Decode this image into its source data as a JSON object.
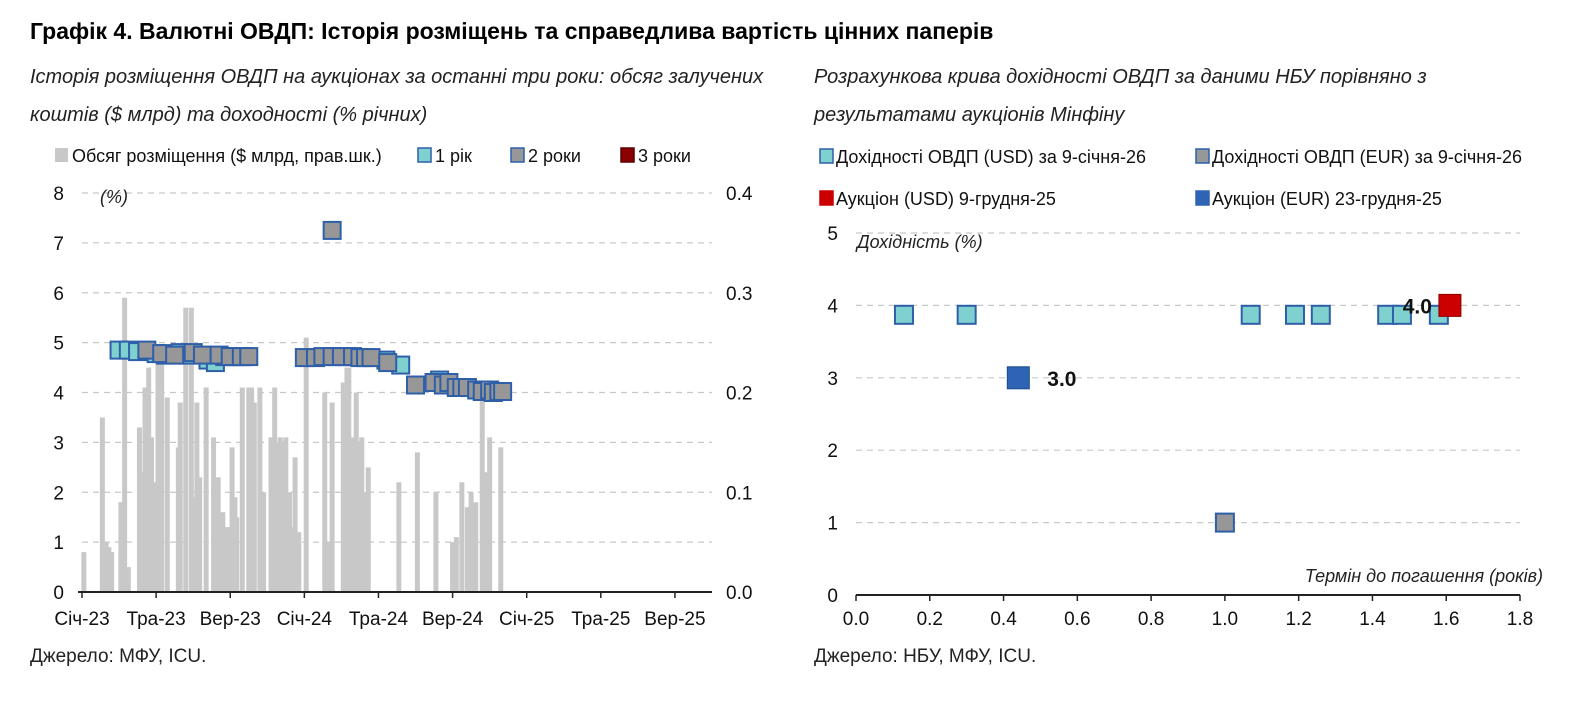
{
  "title": "Графік 4. Валютні ОВДП: Історія розміщень та справедлива вартість цінних паперів",
  "left": {
    "subtitle_line1": "Історія розміщення ОВДП на аукціонах за останні три роки: обсяг залучених",
    "subtitle_line2": "коштів ($ млрд) та доходності (% річних)",
    "source": "Джерело: МФУ, ICU."
  },
  "right": {
    "subtitle_line1": "Розрахункова крива дохідності ОВДП за даними НБУ порівняно з",
    "subtitle_line2": "результатами аукціонів Мінфіну",
    "source": "Джерело: НБУ, МФУ, ICU."
  },
  "colors": {
    "bar": "#c8c8c8",
    "teal": "#7fd1cf",
    "grey_marker": "#979797",
    "dark_red": "#8b0000",
    "red": "#cc0000",
    "blue": "#2e64b3",
    "marker_edge": "#2e5fa8",
    "grid": "#c8c8c8"
  },
  "chart_data": [
    {
      "type": "bar",
      "title": "",
      "ylabel_left": "(%)",
      "ylim_left": [
        0,
        8
      ],
      "yticks_left": [
        "0",
        "1",
        "2",
        "3",
        "4",
        "5",
        "6",
        "7",
        "8"
      ],
      "ylim_right": [
        0,
        0.4
      ],
      "yticks_right": [
        "0.0",
        "0.1",
        "0.2",
        "0.3",
        "0.4"
      ],
      "grid": true,
      "legend_position": "top",
      "x_tick_labels": [
        "Січ-23",
        "Тра-23",
        "Вер-23",
        "Січ-24",
        "Тра-24",
        "Вер-24",
        "Січ-25",
        "Тра-25",
        "Вер-25"
      ],
      "legend": [
        "Обсяг розміщення ($ млрд, прав.шк.)",
        "1 рік",
        "2 роки",
        "3 роки"
      ],
      "series": [
        {
          "name": "Обсяг розміщення ($ млрд, прав.шк.)",
          "axis": "right",
          "x": [
            0.1,
            1.1,
            1.3,
            1.45,
            1.6,
            2.1,
            2.3,
            2.5,
            3.1,
            3.25,
            3.4,
            3.6,
            3.75,
            3.9,
            4.1,
            4.2,
            4.3,
            4.6,
            5.2,
            5.3,
            5.6,
            5.9,
            6.05,
            6.2,
            6.35,
            6.7,
            7.1,
            7.35,
            7.6,
            7.85,
            8.1,
            8.25,
            8.35,
            8.65,
            9.0,
            9.15,
            9.3,
            9.6,
            9.8,
            10.2,
            10.4,
            10.55,
            10.7,
            10.85,
            11.0,
            11.2,
            11.35,
            11.5,
            11.7,
            12.1,
            13.1,
            13.3,
            13.5,
            14.1,
            14.3,
            14.4,
            14.6,
            14.8,
            14.95,
            15.1,
            15.3,
            15.45,
            17.1,
            18.1,
            19.1,
            20.0,
            20.2,
            20.5,
            20.8,
            21.0,
            21.25,
            21.6,
            21.85,
            22.0,
            22.6
          ],
          "values": [
            0.04,
            0.175,
            0.05,
            0.045,
            0.04,
            0.09,
            0.295,
            0.025,
            0.165,
            0.12,
            0.205,
            0.225,
            0.155,
            0.11,
            0.24,
            0.075,
            0.23,
            0.195,
            0.145,
            0.19,
            0.285,
            0.285,
            0.095,
            0.19,
            0.115,
            0.205,
            0.155,
            0.115,
            0.08,
            0.065,
            0.145,
            0.095,
            0.075,
            0.205,
            0.205,
            0.205,
            0.19,
            0.205,
            0.1,
            0.155,
            0.205,
            0.15,
            0.155,
            0.15,
            0.155,
            0.1,
            0.065,
            0.135,
            0.06,
            0.255,
            0.2,
            0.05,
            0.19,
            0.21,
            0.225,
            0.225,
            0.155,
            0.2,
            0.15,
            0.155,
            0.1,
            0.125,
            0.11,
            0.14,
            0.1,
            0.05,
            0.055,
            0.11,
            0.085,
            0.1,
            0.09,
            0.2,
            0.12,
            0.155,
            0.145
          ]
        },
        {
          "name": "1 рік",
          "axis": "left",
          "x": [
            2.0,
            2.5,
            3.0,
            4.0,
            4.5,
            5.3,
            5.7,
            6.8,
            7.2,
            7.7,
            8.2,
            8.7,
            14.3,
            16.4,
            17.2,
            19.3
          ],
          "values": [
            4.85,
            4.85,
            4.82,
            4.78,
            4.75,
            4.8,
            4.75,
            4.65,
            4.6,
            4.72,
            4.72,
            4.72,
            4.72,
            4.65,
            4.55,
            4.25
          ]
        },
        {
          "name": "2 роки",
          "axis": "left",
          "x": [
            3.5,
            4.3,
            5.0,
            6.0,
            6.5,
            7.4,
            8.0,
            8.6,
            9.0,
            12.0,
            12.6,
            13.0,
            13.5,
            14.0,
            14.6,
            15.0,
            15.3,
            15.6,
            16.5,
            18.0,
            19.0,
            19.5,
            19.8,
            20.2,
            20.5,
            20.8,
            21.3,
            21.6,
            22.0,
            22.2,
            22.5,
            22.7
          ],
          "values": [
            4.85,
            4.78,
            4.75,
            4.8,
            4.75,
            4.75,
            4.72,
            4.72,
            4.72,
            4.7,
            4.7,
            4.72,
            4.72,
            4.72,
            4.72,
            4.7,
            4.7,
            4.7,
            4.6,
            4.15,
            4.2,
            4.15,
            4.2,
            4.1,
            4.1,
            4.1,
            4.05,
            4.02,
            4.05,
            4.0,
            4.02,
            4.02
          ]
        },
        {
          "name": "2 роки (outlier)",
          "axis": "left",
          "x": [
            13.5
          ],
          "values": [
            7.25
          ]
        }
      ]
    },
    {
      "type": "scatter",
      "title": "",
      "ylabel": "Дохідність (%)",
      "xlabel": "Термін до погашення (років)",
      "xlim": [
        0,
        1.8
      ],
      "ylim": [
        0,
        5
      ],
      "xticks": [
        "0.0",
        "0.2",
        "0.4",
        "0.6",
        "0.8",
        "1.0",
        "1.2",
        "1.4",
        "1.6",
        "1.8"
      ],
      "yticks": [
        "0",
        "1",
        "2",
        "3",
        "4",
        "5"
      ],
      "grid": true,
      "legend_position": "top",
      "series": [
        {
          "name": "Дохідності ОВДП (USD) за 9-січня-26",
          "points": [
            [
              0.13,
              3.87
            ],
            [
              0.3,
              3.87
            ],
            [
              1.07,
              3.87
            ],
            [
              1.19,
              3.87
            ],
            [
              1.26,
              3.87
            ],
            [
              1.44,
              3.87
            ],
            [
              1.48,
              3.87
            ],
            [
              1.58,
              3.87
            ]
          ]
        },
        {
          "name": "Дохідності ОВДП (EUR) за 9-січня-26",
          "points": [
            [
              1.0,
              1.0
            ]
          ]
        },
        {
          "name": "Аукціон (USD) 9-грудня-25",
          "points": [
            [
              1.61,
              4.0
            ]
          ],
          "label": "4.0"
        },
        {
          "name": "Аукціон (EUR) 23-грудня-25",
          "points": [
            [
              0.44,
              3.0
            ]
          ],
          "label": "3.0"
        }
      ]
    }
  ]
}
